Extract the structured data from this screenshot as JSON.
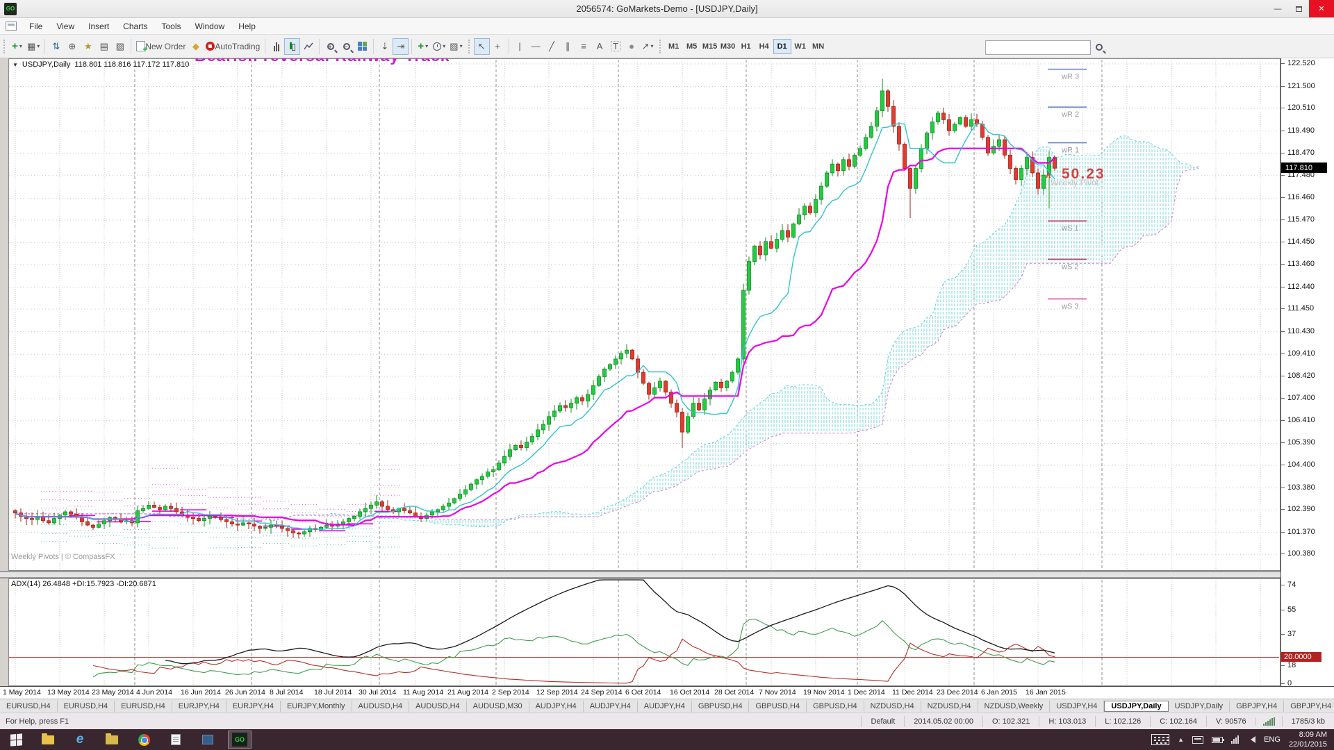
{
  "window": {
    "title": "2056574: GoMarkets-Demo - [USDJPY,Daily]",
    "app_badge": "GO",
    "minimize_glyph": "—",
    "restore_glyph": "",
    "close_glyph": "✕"
  },
  "menu": {
    "items": [
      "File",
      "View",
      "Insert",
      "Charts",
      "Tools",
      "Window",
      "Help"
    ]
  },
  "toolbar": {
    "new_order_label": "New Order",
    "autotrading_label": "AutoTrading",
    "text_tool_label": "A",
    "label_tool_label": "T",
    "timeframes": [
      "M1",
      "M5",
      "M15",
      "M30",
      "H1",
      "H4",
      "D1",
      "W1",
      "MN"
    ],
    "active_timeframe": "D1",
    "search_placeholder": ""
  },
  "chart": {
    "symbol_label": "USDJPY,Daily",
    "ohlc_line": "118.801 118.816 117.172 117.810",
    "clipped_annotation": "Bearish reversal Railway Track",
    "pattern_value": "50.23",
    "chevron_glyph": "∧",
    "pivot_caption": "Weekly Pivot",
    "credit": "Weekly Pivots | © CompassFX",
    "current_price_label": "117.810"
  },
  "indicator_panel": {
    "label": "ADX(14) 26.4848 +DI:15.7923 -DI:20.6871",
    "level_badge": "20.0000"
  },
  "chart_data": {
    "type": "candlestick",
    "symbol": "USDJPY",
    "period": "Daily",
    "x_tick_labels": [
      "1 May 2014",
      "13 May 2014",
      "23 May 2014",
      "4 Jun 2014",
      "16 Jun 2014",
      "26 Jun 2014",
      "8 Jul 2014",
      "18 Jul 2014",
      "30 Jul 2014",
      "11 Aug 2014",
      "21 Aug 2014",
      "2 Sep 2014",
      "12 Sep 2014",
      "24 Sep 2014",
      "6 Oct 2014",
      "16 Oct 2014",
      "28 Oct 2014",
      "7 Nov 2014",
      "19 Nov 2014",
      "1 Dec 2014",
      "11 Dec 2014",
      "23 Dec 2014",
      "6 Jan 2015",
      "16 Jan 2015"
    ],
    "x_tick_bar_indices": [
      0,
      8,
      16,
      24,
      32,
      40,
      48,
      56,
      64,
      72,
      80,
      88,
      96,
      104,
      112,
      120,
      128,
      136,
      144,
      152,
      160,
      168,
      176,
      184
    ],
    "y_ticks": [
      122.52,
      121.5,
      120.51,
      119.49,
      118.47,
      117.48,
      116.46,
      115.47,
      114.45,
      113.46,
      112.44,
      111.45,
      110.43,
      109.41,
      108.42,
      107.4,
      106.41,
      105.39,
      104.4,
      103.38,
      102.39,
      101.37,
      100.38
    ],
    "current_price": 117.81,
    "closes": [
      102.25,
      102.1,
      102.0,
      101.95,
      102.1,
      101.9,
      101.8,
      102.0,
      102.15,
      102.3,
      102.2,
      102.05,
      101.85,
      101.7,
      101.6,
      101.75,
      101.9,
      102.05,
      101.95,
      101.85,
      101.9,
      101.8,
      102.35,
      102.45,
      102.6,
      102.5,
      102.4,
      102.55,
      102.45,
      102.3,
      102.15,
      102.05,
      102.0,
      101.9,
      102.0,
      102.1,
      102.05,
      101.95,
      101.85,
      101.75,
      101.7,
      101.8,
      101.75,
      101.65,
      101.55,
      101.6,
      101.7,
      101.65,
      101.55,
      101.45,
      101.35,
      101.3,
      101.4,
      101.55,
      101.5,
      101.6,
      101.7,
      101.65,
      101.75,
      101.85,
      102.0,
      102.1,
      102.3,
      102.45,
      102.6,
      102.75,
      102.55,
      102.4,
      102.3,
      102.45,
      102.35,
      102.25,
      102.1,
      102.0,
      102.15,
      102.3,
      102.4,
      102.55,
      102.7,
      102.9,
      103.1,
      103.3,
      103.55,
      103.75,
      103.9,
      104.1,
      104.2,
      104.5,
      104.8,
      105.1,
      105.3,
      105.2,
      105.45,
      105.7,
      106.0,
      106.25,
      106.6,
      106.85,
      107.1,
      107.0,
      107.2,
      107.45,
      107.3,
      107.6,
      108.0,
      108.4,
      108.75,
      108.95,
      109.2,
      109.45,
      109.6,
      109.2,
      108.6,
      108.1,
      107.6,
      107.9,
      108.2,
      107.7,
      107.2,
      106.8,
      105.9,
      106.6,
      107.2,
      106.9,
      107.4,
      107.8,
      108.15,
      107.9,
      108.2,
      108.6,
      109.2,
      112.3,
      113.6,
      114.3,
      113.9,
      114.5,
      114.2,
      114.6,
      115.0,
      114.7,
      115.3,
      115.7,
      116.1,
      115.8,
      116.4,
      117.0,
      117.6,
      118.0,
      117.7,
      118.2,
      117.9,
      118.4,
      118.7,
      119.2,
      119.7,
      120.4,
      121.3,
      120.6,
      119.7,
      118.9,
      117.8,
      116.9,
      117.8,
      118.7,
      119.4,
      119.9,
      120.3,
      120.0,
      119.5,
      119.8,
      120.1,
      119.7,
      120.0,
      119.8,
      119.2,
      118.5,
      118.8,
      119.1,
      118.4,
      117.8,
      117.3,
      117.8,
      118.3,
      117.6,
      116.9,
      117.5,
      118.3,
      117.81
    ],
    "spikes": {
      "120": {
        "low": 105.18
      },
      "131": {
        "high": 112.6
      },
      "156": {
        "high": 121.85
      },
      "161": {
        "low": 115.56
      },
      "186": {
        "low": 116.0
      }
    },
    "month_separator_indices": [
      22,
      43,
      66,
      87,
      109,
      132,
      152,
      173,
      196
    ],
    "ichimoku": {
      "tenkan_period": 9,
      "kijun_period": 26,
      "senkou_b_period": 52,
      "shift": 26
    },
    "adx": {
      "period": 14,
      "current_adx": 26.4848,
      "current_plus_di": 15.7923,
      "current_minus_di": 20.6871,
      "level": 20,
      "scale_ticks": [
        74,
        55,
        37,
        18,
        0
      ]
    },
    "weekly_pivots": [
      {
        "label": "wR 3",
        "price": 122.28,
        "color": "#6b86c8"
      },
      {
        "label": "wR 2",
        "price": 120.57,
        "color": "#6b86c8"
      },
      {
        "label": "wR 1",
        "price": 118.96,
        "color": "#6b86c8"
      },
      {
        "label": "wS 1",
        "price": 115.43,
        "color": "#b84a6e"
      },
      {
        "label": "wS 2",
        "price": 113.7,
        "color": "#b84a6e"
      },
      {
        "label": "wS 3",
        "price": 111.91,
        "color": "#df4fa6"
      }
    ],
    "colors": {
      "bull": "#22cc3e",
      "bull_border": "#0d8a22",
      "bear": "#e23b2e",
      "bear_border": "#9c1f14",
      "tenkan": "#2fc5ce",
      "kijun": "#ea00ea",
      "cloud_hatch": "#7fd8dc",
      "span_a": "#5ecfd6",
      "span_b": "#e06fd0",
      "adx": "#1a1a1a",
      "plus_di": "#3f9d4e",
      "minus_di": "#b33028",
      "level_line": "#b22222",
      "grid": "#c9c9c9",
      "separator": "#8f8f8f",
      "pivot_p": "#e800e8",
      "pivot_r": "#dd66dd",
      "pivot_s": "#55c8cc"
    }
  },
  "tabs": {
    "items": [
      "EURUSD,H4",
      "EURUSD,H4",
      "EURUSD,H4",
      "EURJPY,H4",
      "EURJPY,H4",
      "EURJPY,Monthly",
      "AUDUSD,H4",
      "AUDUSD,H4",
      "AUDUSD,M30",
      "AUDJPY,H4",
      "AUDJPY,H4",
      "AUDJPY,H4",
      "GBPUSD,H4",
      "GBPUSD,H4",
      "GBPUSD,H4",
      "NZDUSD,H4",
      "NZDUSD,H4",
      "NZDUSD,Weekly",
      "USDJPY,H4",
      "USDJPY,Daily",
      "USDJPY,Daily",
      "GBPJPY,H4",
      "GBPJPY,H4"
    ],
    "active_index": 19,
    "left_arrow": "◄",
    "right_arrow": "►"
  },
  "status": {
    "help": "For Help, press F1",
    "profile": "Default",
    "bar_time": "2014.05.02 00:00",
    "open": "O: 102.321",
    "high": "H: 103.013",
    "low": "L: 102.126",
    "close": "C: 102.164",
    "volume": "V: 90576",
    "data_size": "1785/3 kb"
  },
  "taskbar": {
    "language": "ENG",
    "time": "8:09 AM",
    "date": "22/01/2015",
    "app_badge": "GO"
  }
}
